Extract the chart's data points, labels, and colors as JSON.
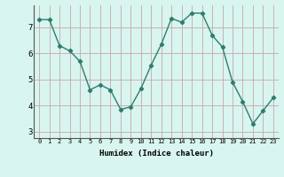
{
  "x": [
    0,
    1,
    2,
    3,
    4,
    5,
    6,
    7,
    8,
    9,
    10,
    11,
    12,
    13,
    14,
    15,
    16,
    17,
    18,
    19,
    20,
    21,
    22,
    23
  ],
  "y": [
    7.3,
    7.3,
    6.3,
    6.1,
    5.7,
    4.6,
    4.8,
    4.6,
    3.85,
    3.95,
    4.65,
    5.55,
    6.35,
    7.35,
    7.2,
    7.55,
    7.55,
    6.7,
    6.25,
    4.9,
    4.15,
    3.3,
    3.8,
    4.3
  ],
  "line_color": "#2e7d6e",
  "marker": "D",
  "marker_size": 2.2,
  "line_width": 1.0,
  "bg_color": "#d8f5f0",
  "grid_color": "#b8d8d0",
  "grid_color_major": "#c8a0a0",
  "xlabel": "Humidex (Indice chaleur)",
  "xlim": [
    -0.5,
    23.5
  ],
  "ylim": [
    2.75,
    7.85
  ],
  "yticks": [
    3,
    4,
    5,
    6,
    7
  ],
  "xticks": [
    0,
    1,
    2,
    3,
    4,
    5,
    6,
    7,
    8,
    9,
    10,
    11,
    12,
    13,
    14,
    15,
    16,
    17,
    18,
    19,
    20,
    21,
    22,
    23
  ],
  "xtick_labels": [
    "0",
    "1",
    "2",
    "3",
    "4",
    "5",
    "6",
    "7",
    "8",
    "9",
    "10",
    "11",
    "12",
    "13",
    "14",
    "15",
    "16",
    "17",
    "18",
    "19",
    "20",
    "21",
    "22",
    "23"
  ]
}
